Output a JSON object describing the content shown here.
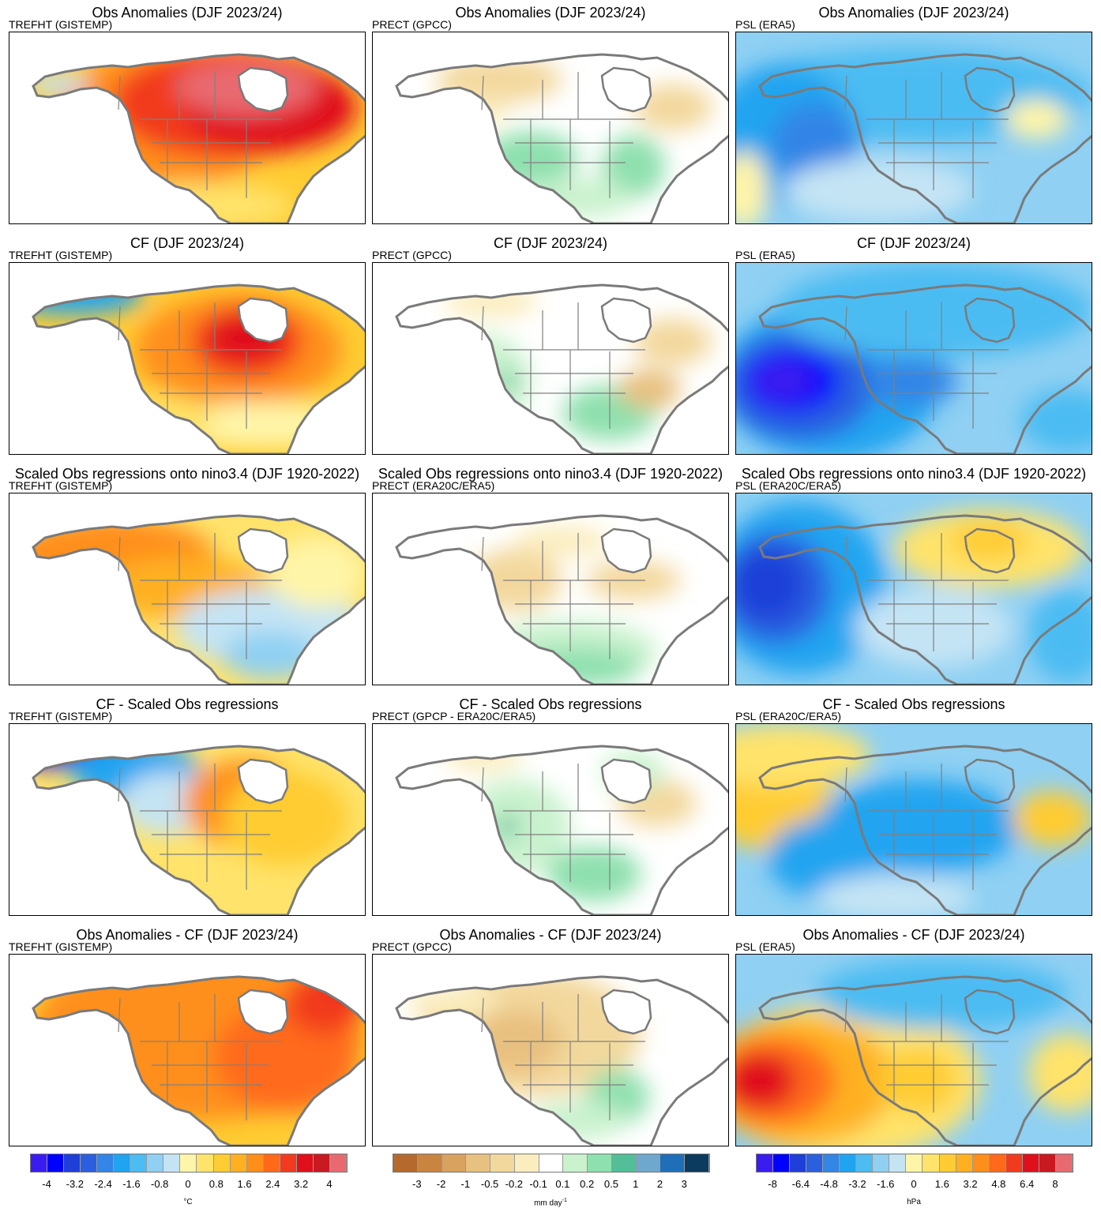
{
  "panels": [
    {
      "title": "Obs Anomalies (DJF 2023/24)",
      "label": "TREFHT (GISTEMP)",
      "var": "t",
      "pattern": "t_obs"
    },
    {
      "title": "Obs Anomalies (DJF 2023/24)",
      "label": "PRECT (GPCC)",
      "var": "p",
      "pattern": "p_obs"
    },
    {
      "title": "Obs Anomalies (DJF 2023/24)",
      "label": "PSL (ERA5)",
      "var": "s",
      "pattern": "s_obs"
    },
    {
      "title": "CF (DJF 2023/24)",
      "label": "TREFHT (GISTEMP)",
      "var": "t",
      "pattern": "t_cf"
    },
    {
      "title": "CF (DJF 2023/24)",
      "label": "PRECT (GPCC)",
      "var": "p",
      "pattern": "p_cf"
    },
    {
      "title": "CF (DJF 2023/24)",
      "label": "PSL (ERA5)",
      "var": "s",
      "pattern": "s_cf"
    },
    {
      "title": "Scaled Obs regressions onto nino3.4 (DJF 1920-2022)",
      "label": "TREFHT (GISTEMP)",
      "var": "t",
      "pattern": "t_reg"
    },
    {
      "title": "Scaled Obs regressions onto nino3.4 (DJF 1920-2022)",
      "label": "PRECT (ERA20C/ERA5)",
      "var": "p",
      "pattern": "p_reg"
    },
    {
      "title": "Scaled Obs regressions onto nino3.4 (DJF 1920-2022)",
      "label": "PSL (ERA20C/ERA5)",
      "var": "s",
      "pattern": "s_reg"
    },
    {
      "title": "CF - Scaled Obs regressions",
      "label": "TREFHT (GISTEMP)",
      "var": "t",
      "pattern": "t_diff"
    },
    {
      "title": "CF - Scaled Obs regressions",
      "label": "PRECT (GPCP - ERA20C/ERA5)",
      "var": "p",
      "pattern": "p_diff"
    },
    {
      "title": "CF - Scaled Obs regressions",
      "label": "PSL (ERA20C/ERA5)",
      "var": "s",
      "pattern": "s_diff"
    },
    {
      "title": "Obs Anomalies - CF (DJF 2023/24)",
      "label": "TREFHT (GISTEMP)",
      "var": "t",
      "pattern": "t_res"
    },
    {
      "title": "Obs Anomalies - CF (DJF 2023/24)",
      "label": "PRECT (GPCC)",
      "var": "p",
      "pattern": "p_res"
    },
    {
      "title": "Obs Anomalies - CF (DJF 2023/24)",
      "label": "PSL (ERA5)",
      "var": "s",
      "pattern": "s_res"
    }
  ],
  "colorbars": {
    "t": {
      "unit": "°C",
      "colors": [
        "#3a1cf0",
        "#0000ff",
        "#1e3fd8",
        "#2a5fe0",
        "#3385e6",
        "#20a4f0",
        "#4cbcf2",
        "#8fd0f3",
        "#c4e4f4",
        "#fff5a8",
        "#ffe36b",
        "#ffcc33",
        "#ffb020",
        "#ff8f1a",
        "#ff6a1a",
        "#f23a1f",
        "#e0101a",
        "#c81a20",
        "#e86a70"
      ],
      "ticks": [
        "-4",
        "-3.2",
        "-2.4",
        "-1.6",
        "-0.8",
        "0",
        "0.8",
        "1.6",
        "2.4",
        "3.2",
        "4"
      ]
    },
    "p": {
      "unit": "mm day",
      "unit_sup": "-1",
      "colors": [
        "#b5692d",
        "#c9843f",
        "#d9a25e",
        "#e8c07f",
        "#f3d89d",
        "#fbedbe",
        "#ffffff",
        "#c9f2cd",
        "#8ee0ae",
        "#52bf98",
        "#6ea8cf",
        "#1f6fb8",
        "#0b3b5e"
      ],
      "ticks": [
        "-3",
        "-2",
        "-1",
        "-0.5",
        "-0.2",
        "-0.1",
        "0.1",
        "0.2",
        "0.5",
        "1",
        "2",
        "3"
      ]
    },
    "s": {
      "unit": "hPa",
      "colors": [
        "#3a1cf0",
        "#0000ff",
        "#1e3fd8",
        "#2a5fe0",
        "#3385e6",
        "#20a4f0",
        "#4cbcf2",
        "#8fd0f3",
        "#c4e4f4",
        "#fff5a8",
        "#ffe36b",
        "#ffcc33",
        "#ffb020",
        "#ff8f1a",
        "#ff6a1a",
        "#f23a1f",
        "#e0101a",
        "#c81a20",
        "#e86a70"
      ],
      "ticks": [
        "-8",
        "-6.4",
        "-4.8",
        "-3.2",
        "-1.6",
        "0",
        "1.6",
        "3.2",
        "4.8",
        "6.4",
        "8"
      ]
    }
  }
}
